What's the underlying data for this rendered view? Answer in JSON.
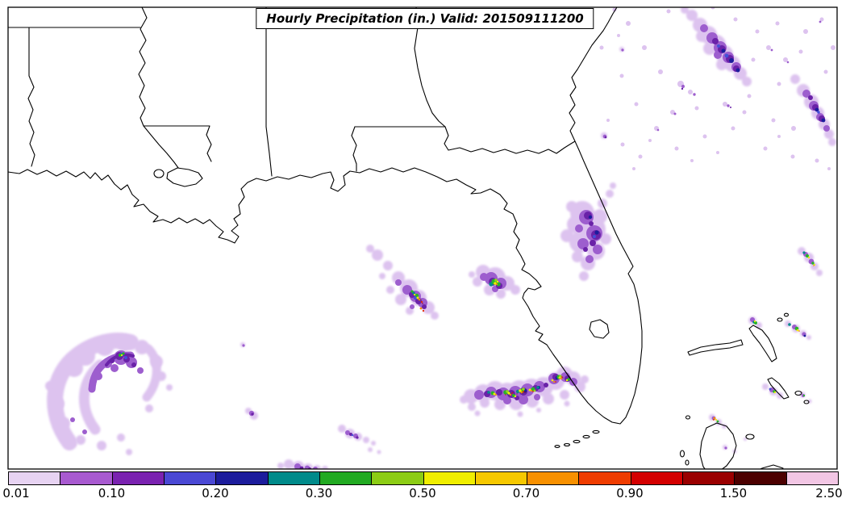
{
  "title_box": {
    "text": "Hourly Precipitation (in.) Valid: 201509111200"
  },
  "colorbar": {
    "units": "in.",
    "tick_labels": [
      "0.01",
      "0.10",
      "0.20",
      "0.30",
      "0.50",
      "0.70",
      "0.90",
      "1.50",
      "2.50"
    ],
    "segment_colors": [
      "#e7d3f2",
      "#a85ad0",
      "#7a22b0",
      "#4a48d4",
      "#1c1c9c",
      "#008a8a",
      "#22aa22",
      "#8ccc14",
      "#f0ee00",
      "#f6c800",
      "#f79000",
      "#ef3c00",
      "#d40000",
      "#9a0000",
      "#4c0000",
      "#f2c6e4"
    ]
  },
  "palette": {
    "lavender": "#ddc3ef",
    "purple": "#9d5ece",
    "dark_purple": "#6a22a8",
    "blue": "#4450d8",
    "navy": "#1c1c9c",
    "teal": "#008a8a",
    "green": "#28b428",
    "yellow_green": "#93d41c",
    "yellow": "#f0ee00",
    "orange": "#f79000",
    "red": "#e42800",
    "dark_red": "#9a0000",
    "maroon": "#4c0000"
  }
}
